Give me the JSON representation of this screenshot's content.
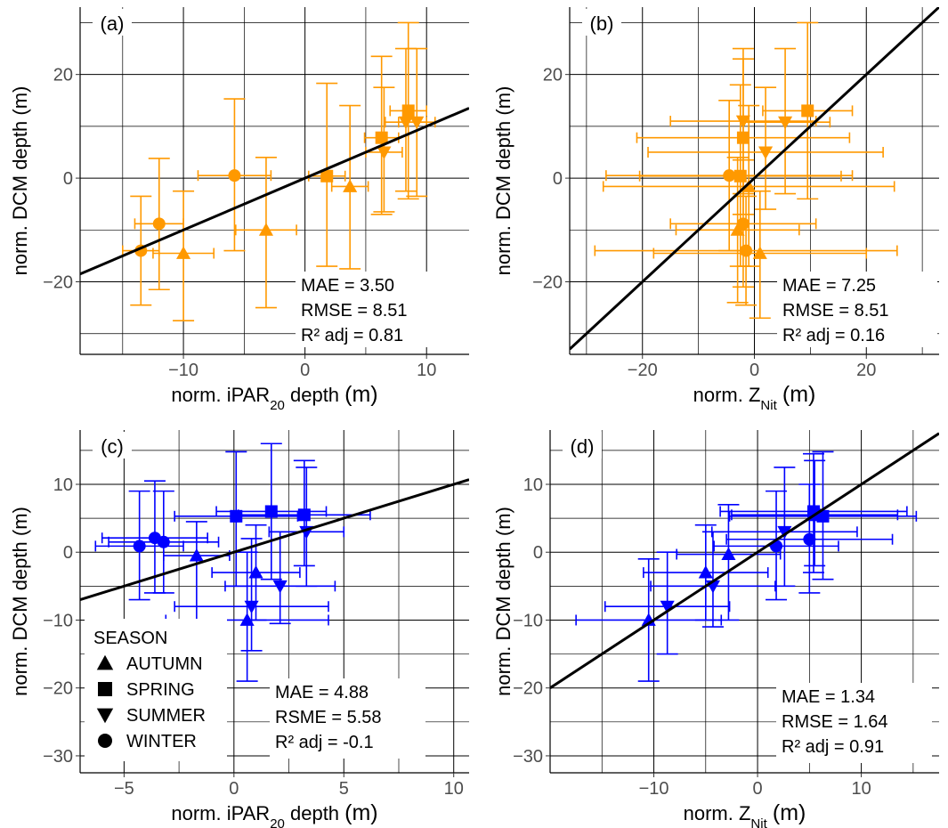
{
  "chart_data": [
    {
      "type": "scatter",
      "panel_label": "(a)",
      "xlabel": "norm. iPAR20 depth (m)",
      "xlabel_parts": {
        "pre": "norm. iPAR",
        "sub": "20",
        "post": " depth ",
        "unit": "(m)"
      },
      "ylabel": "norm. DCM depth (m)",
      "xlim": [
        -18.5,
        13.5
      ],
      "ylim": [
        -34,
        33
      ],
      "xticks": [
        -10,
        0,
        10
      ],
      "yticks": [
        -20,
        0,
        20
      ],
      "color": "#ff9900",
      "fit_line": {
        "slope": 1.0,
        "intercept": 0
      },
      "stats": [
        "MAE = 3.50",
        "RMSE = 8.51",
        "R² adj = 0.81"
      ],
      "points": [
        {
          "season": "WINTER",
          "x": -13.5,
          "y": -14,
          "xerr": 1.5,
          "ylo": -24.5,
          "yhi": -3.5
        },
        {
          "season": "WINTER",
          "x": -12,
          "y": -8.8,
          "xerr": 2,
          "ylo": -21.5,
          "yhi": 3.8
        },
        {
          "season": "AUTUMN",
          "x": -10,
          "y": -14.5,
          "xerr": 2.5,
          "ylo": -27.5,
          "yhi": -2.5
        },
        {
          "season": "WINTER",
          "x": -5.8,
          "y": 0.5,
          "xerr": 3,
          "ylo": -14,
          "yhi": 15.3
        },
        {
          "season": "AUTUMN",
          "x": -3.2,
          "y": -10,
          "xerr": 2.5,
          "ylo": -25,
          "yhi": 4
        },
        {
          "season": "SPRING",
          "x": 1.8,
          "y": 0.4,
          "xerr": 1.5,
          "ylo": -17,
          "yhi": 18.3
        },
        {
          "season": "AUTUMN",
          "x": 3.7,
          "y": -1.6,
          "xerr": 1.5,
          "ylo": -17.5,
          "yhi": 14
        },
        {
          "season": "SPRING",
          "x": 6.3,
          "y": 7.8,
          "xerr": 1.4,
          "ylo": -7,
          "yhi": 23.5
        },
        {
          "season": "SUMMER",
          "x": 6.5,
          "y": 5,
          "xerr": 1.5,
          "ylo": -6.5,
          "yhi": 17.5
        },
        {
          "season": "SPRING",
          "x": 8.5,
          "y": 13,
          "xerr": 1.5,
          "ylo": -4,
          "yhi": 30
        },
        {
          "season": "SUMMER",
          "x": 8.3,
          "y": 10.8,
          "xerr": 1.7,
          "ylo": -2.5,
          "yhi": 25
        },
        {
          "season": "SUMMER",
          "x": 9.2,
          "y": 10.8,
          "xerr": 1.5,
          "ylo": -3.5,
          "yhi": 25
        }
      ]
    },
    {
      "type": "scatter",
      "panel_label": "(b)",
      "xlabel": "norm. ZNit (m)",
      "xlabel_parts": {
        "pre": "norm. Z",
        "sub": "Nit",
        "post": " ",
        "unit": "(m)"
      },
      "ylabel": "norm. DCM depth (m)",
      "xlim": [
        -33,
        33
      ],
      "ylim": [
        -34,
        33
      ],
      "xticks": [
        -20,
        0,
        20
      ],
      "yticks": [
        -20,
        0,
        20
      ],
      "color": "#ff9900",
      "fit_line": {
        "slope": 1.0,
        "intercept": 0
      },
      "stats": [
        "MAE = 7.25",
        "RMSE = 8.51",
        "R² adj = 0.16"
      ],
      "points": [
        {
          "season": "SPRING",
          "x": 9.5,
          "y": 13,
          "xerr": 8,
          "ylo": -4,
          "yhi": 30
        },
        {
          "season": "SUMMER",
          "x": -2,
          "y": 11,
          "xerr": 13,
          "ylo": -3,
          "yhi": 25
        },
        {
          "season": "SUMMER",
          "x": 5.5,
          "y": 10.8,
          "xerr": 8,
          "ylo": -3,
          "yhi": 25
        },
        {
          "season": "SPRING",
          "x": -2,
          "y": 7.8,
          "xerr": 19,
          "ylo": -7,
          "yhi": 23
        },
        {
          "season": "SUMMER",
          "x": 2,
          "y": 5,
          "xerr": 21,
          "ylo": -6,
          "yhi": 17.5
        },
        {
          "season": "WINTER",
          "x": -4.5,
          "y": 0.5,
          "xerr": 22,
          "ylo": -14,
          "yhi": 15
        },
        {
          "season": "SPRING",
          "x": -2.5,
          "y": 0.4,
          "xerr": 18,
          "ylo": -17,
          "yhi": 18
        },
        {
          "season": "AUTUMN",
          "x": -1,
          "y": -1.6,
          "xerr": 26,
          "ylo": -17,
          "yhi": 14
        },
        {
          "season": "WINTER",
          "x": -2,
          "y": -8.8,
          "xerr": 13,
          "ylo": -21,
          "yhi": 3.5
        },
        {
          "season": "AUTUMN",
          "x": -3,
          "y": -10,
          "xerr": 11,
          "ylo": -24,
          "yhi": 4
        },
        {
          "season": "WINTER",
          "x": -1.5,
          "y": -14,
          "xerr": 27,
          "ylo": -24.5,
          "yhi": -3.5
        },
        {
          "season": "AUTUMN",
          "x": 1,
          "y": -14.5,
          "xerr": 19,
          "ylo": -27,
          "yhi": -2.5
        }
      ]
    },
    {
      "type": "scatter",
      "panel_label": "(c)",
      "xlabel": "norm. iPAR20 depth (m)",
      "xlabel_parts": {
        "pre": "norm. iPAR",
        "sub": "20",
        "post": " depth ",
        "unit": "(m)"
      },
      "ylabel": "norm. DCM depth (m)",
      "xlim": [
        -7,
        10.7
      ],
      "ylim": [
        -32.5,
        18
      ],
      "xticks": [
        -5,
        0,
        5,
        10
      ],
      "yticks": [
        -30,
        -20,
        -10,
        0,
        10
      ],
      "color": "#0000ff",
      "fit_line": {
        "slope": 1.0,
        "intercept": 0
      },
      "stats": [
        "MAE = 4.88",
        "RSME = 5.58",
        "R² adj = -0.1"
      ],
      "legend": {
        "title": "SEASON",
        "entries": [
          "AUTUMN",
          "SPRING",
          "SUMMER",
          "WINTER"
        ],
        "position": "bottom-left"
      },
      "points": [
        {
          "season": "SPRING",
          "x": 0.1,
          "y": 5.3,
          "xerr": 2.8,
          "ylo": -5,
          "yhi": 14.8
        },
        {
          "season": "SPRING",
          "x": 1.7,
          "y": 6,
          "xerr": 2.5,
          "ylo": -4,
          "yhi": 16
        },
        {
          "season": "SPRING",
          "x": 3.2,
          "y": 5.5,
          "xerr": 3,
          "ylo": -2,
          "yhi": 13.5
        },
        {
          "season": "SUMMER",
          "x": 3.3,
          "y": 3,
          "xerr": 1.7,
          "ylo": -5,
          "yhi": 12.5
        },
        {
          "season": "WINTER",
          "x": -3.6,
          "y": 2.1,
          "xerr": 2.4,
          "ylo": -6,
          "yhi": 10.5
        },
        {
          "season": "WINTER",
          "x": -3.2,
          "y": 1.5,
          "xerr": 2.5,
          "ylo": -6,
          "yhi": 9
        },
        {
          "season": "WINTER",
          "x": -4.3,
          "y": 0.9,
          "xerr": 2,
          "ylo": -7,
          "yhi": 9
        },
        {
          "season": "AUTUMN",
          "x": -1.7,
          "y": -0.5,
          "xerr": 1.5,
          "ylo": -10,
          "yhi": 4.5
        },
        {
          "season": "AUTUMN",
          "x": 1,
          "y": -3,
          "xerr": 2,
          "ylo": -10,
          "yhi": 4
        },
        {
          "season": "SUMMER",
          "x": 2.1,
          "y": -5,
          "xerr": 2.5,
          "ylo": -10.5,
          "yhi": 3
        },
        {
          "season": "SUMMER",
          "x": 0.8,
          "y": -8,
          "xerr": 3.5,
          "ylo": -14.5,
          "yhi": 2
        },
        {
          "season": "AUTUMN",
          "x": 0.6,
          "y": -10,
          "xerr": 3.7,
          "ylo": -19,
          "yhi": 0
        }
      ]
    },
    {
      "type": "scatter",
      "panel_label": "(d)",
      "xlabel": "norm. ZNit (m)",
      "xlabel_parts": {
        "pre": "norm. Z",
        "sub": "Nit",
        "post": " ",
        "unit": "(m)"
      },
      "ylabel": "norm. DCM depth (m)",
      "xlim": [
        -20,
        17.5
      ],
      "ylim": [
        -32.5,
        18
      ],
      "xticks": [
        -10,
        0,
        10
      ],
      "yticks": [
        -30,
        -20,
        -10,
        0,
        10
      ],
      "color": "#0000ff",
      "fit_line": {
        "slope": 1.0,
        "intercept": 0
      },
      "stats": [
        "MAE = 1.34",
        "RMSE = 1.64",
        "R² adj = 0.91"
      ],
      "points": [
        {
          "season": "SPRING",
          "x": 5.4,
          "y": 6,
          "xerr": 9,
          "ylo": -3,
          "yhi": 14.5
        },
        {
          "season": "SPRING",
          "x": 6.3,
          "y": 5.3,
          "xerr": 9,
          "ylo": -4,
          "yhi": 14.8
        },
        {
          "season": "SPRING",
          "x": 5.5,
          "y": 5.5,
          "xerr": 8,
          "ylo": -2,
          "yhi": 13.5
        },
        {
          "season": "SUMMER",
          "x": 2.6,
          "y": 3,
          "xerr": 7,
          "ylo": -5,
          "yhi": 12.5
        },
        {
          "season": "WINTER",
          "x": 5,
          "y": 1.9,
          "xerr": 8,
          "ylo": -6,
          "yhi": 10
        },
        {
          "season": "WINTER",
          "x": 1.8,
          "y": 0.9,
          "xerr": 6,
          "ylo": -7,
          "yhi": 9
        },
        {
          "season": "AUTUMN",
          "x": -2.8,
          "y": -0.3,
          "xerr": 5,
          "ylo": -10,
          "yhi": 7
        },
        {
          "season": "AUTUMN",
          "x": -5,
          "y": -3,
          "xerr": 6,
          "ylo": -10,
          "yhi": 4
        },
        {
          "season": "SUMMER",
          "x": -4.3,
          "y": -5,
          "xerr": 6,
          "ylo": -11,
          "yhi": 3
        },
        {
          "season": "SUMMER",
          "x": -8.7,
          "y": -8,
          "xerr": 6,
          "ylo": -15,
          "yhi": 0
        },
        {
          "season": "AUTUMN",
          "x": -10.5,
          "y": -10,
          "xerr": 7,
          "ylo": -19,
          "yhi": -1
        }
      ]
    }
  ]
}
